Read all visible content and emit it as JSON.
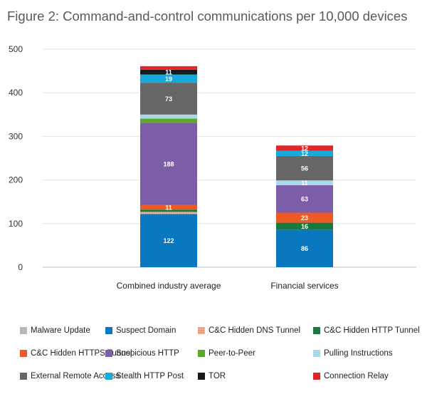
{
  "chart_data": {
    "type": "bar",
    "stacked": true,
    "title": "Figure 2: Command-and-control communications per 10,000 devices",
    "xlabel": "",
    "ylabel": "",
    "ylim": [
      0,
      500
    ],
    "yticks": [
      0,
      100,
      200,
      300,
      400,
      500
    ],
    "grid": true,
    "legend_position": "bottom",
    "categories": [
      "Combined industry average",
      "Financial services"
    ],
    "series": [
      {
        "name": "Malware Update",
        "color": "#b8b8b8",
        "values": [
          0,
          0
        ],
        "labels": [
          "",
          ""
        ]
      },
      {
        "name": "Suspect Domain",
        "color": "#0a78be",
        "values": [
          122,
          86
        ],
        "labels": [
          "122",
          "86"
        ]
      },
      {
        "name": "C&C Hidden DNS Tunnel",
        "color": "#e5835a",
        "pattern": "dotted",
        "values": [
          5,
          0
        ],
        "labels": [
          "",
          ""
        ]
      },
      {
        "name": "C&C Hidden HTTP Tunnel",
        "color": "#1a7a3c",
        "values": [
          5,
          16
        ],
        "labels": [
          "",
          "16"
        ]
      },
      {
        "name": "C&C Hidden HTTPS Tunnel",
        "color": "#ee5a26",
        "values": [
          11,
          23
        ],
        "labels": [
          "11",
          "23"
        ]
      },
      {
        "name": "Suspicious HTTP",
        "color": "#7b5ea7",
        "values": [
          188,
          63
        ],
        "labels": [
          "188",
          "63"
        ]
      },
      {
        "name": "Peer-to-Peer",
        "color": "#5ca828",
        "values": [
          10,
          0
        ],
        "labels": [
          "",
          ""
        ]
      },
      {
        "name": "Pulling Instructions",
        "color": "#a8d8ec",
        "values": [
          9,
          11
        ],
        "labels": [
          "",
          "11"
        ]
      },
      {
        "name": "External Remote Access",
        "color": "#666666",
        "values": [
          73,
          56
        ],
        "labels": [
          "73",
          "56"
        ]
      },
      {
        "name": "Stealth HTTP Post",
        "color": "#16a9dc",
        "values": [
          19,
          12
        ],
        "labels": [
          "19",
          "12"
        ]
      },
      {
        "name": "TOR",
        "color": "#1a1a1a",
        "values": [
          11,
          0
        ],
        "labels": [
          "11",
          ""
        ]
      },
      {
        "name": "Connection Relay",
        "color": "#e0252b",
        "values": [
          8,
          12
        ],
        "labels": [
          "",
          "12"
        ]
      }
    ]
  }
}
